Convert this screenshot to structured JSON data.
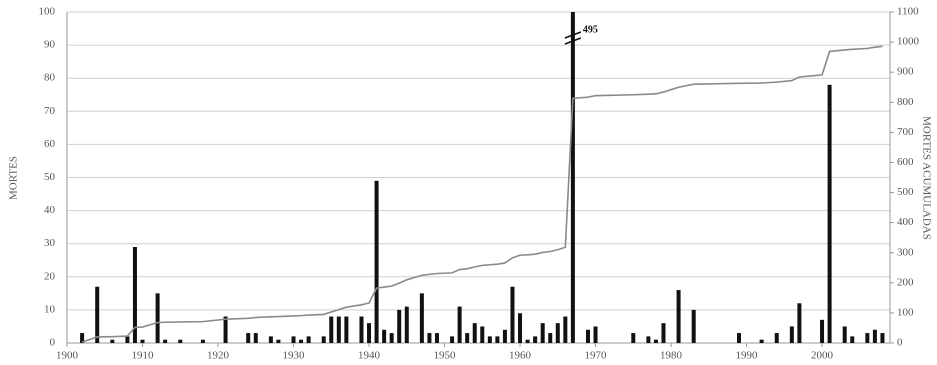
{
  "chart_data": {
    "type": "bar_line",
    "ylabel": "MORTES",
    "y2label": "MORTES ACUMULADAS",
    "x": [
      1902,
      1904,
      1906,
      1908,
      1909,
      1910,
      1912,
      1913,
      1915,
      1918,
      1921,
      1924,
      1925,
      1927,
      1928,
      1930,
      1931,
      1932,
      1934,
      1935,
      1936,
      1937,
      1939,
      1940,
      1941,
      1942,
      1943,
      1944,
      1945,
      1947,
      1948,
      1949,
      1951,
      1952,
      1953,
      1954,
      1955,
      1956,
      1957,
      1958,
      1959,
      1960,
      1961,
      1962,
      1963,
      1964,
      1965,
      1966,
      1967,
      1969,
      1970,
      1975,
      1977,
      1978,
      1979,
      1981,
      1983,
      1989,
      1992,
      1994,
      1996,
      1997,
      2000,
      2001,
      2003,
      2004,
      2006,
      2007,
      2008
    ],
    "series": [
      {
        "type": "bar",
        "color": "#111111",
        "values": [
          3,
          17,
          1,
          2,
          29,
          1,
          15,
          1,
          1,
          1,
          8,
          3,
          3,
          2,
          1,
          2,
          1,
          2,
          2,
          8,
          8,
          8,
          8,
          6,
          49,
          4,
          3,
          10,
          11,
          15,
          3,
          3,
          2,
          11,
          3,
          6,
          5,
          2,
          2,
          4,
          17,
          9,
          1,
          2,
          6,
          3,
          6,
          8,
          495,
          4,
          5,
          3,
          2,
          1,
          6,
          16,
          10,
          3,
          1,
          3,
          5,
          12,
          7,
          78,
          5,
          2,
          3,
          4,
          3
        ]
      },
      {
        "type": "line",
        "axis": "y2",
        "color": "#8a8a8a",
        "values": [
          3,
          20,
          21,
          23,
          52,
          53,
          68,
          69,
          70,
          71,
          79,
          82,
          85,
          87,
          88,
          90,
          91,
          93,
          95,
          103,
          111,
          119,
          127,
          133,
          182,
          186,
          189,
          199,
          210,
          225,
          228,
          231,
          233,
          244,
          247,
          253,
          258,
          260,
          262,
          266,
          283,
          292,
          293,
          295,
          301,
          304,
          310,
          318,
          813,
          817,
          822,
          825,
          827,
          828,
          834,
          850,
          860,
          863,
          864,
          867,
          872,
          884,
          891,
          969,
          974,
          976,
          979,
          983,
          986
        ]
      }
    ],
    "xlim": [
      1900,
      2009
    ],
    "xticks": [
      1900,
      1910,
      1920,
      1930,
      1940,
      1950,
      1960,
      1970,
      1980,
      1990,
      2000
    ],
    "ylim": [
      0,
      100
    ],
    "yticks": [
      0,
      10,
      20,
      30,
      40,
      50,
      60,
      70,
      80,
      90,
      100
    ],
    "y2lim": [
      0,
      1100
    ],
    "y2ticks": [
      0,
      100,
      200,
      300,
      400,
      500,
      600,
      700,
      800,
      900,
      1000,
      1100
    ],
    "grid": true
  }
}
